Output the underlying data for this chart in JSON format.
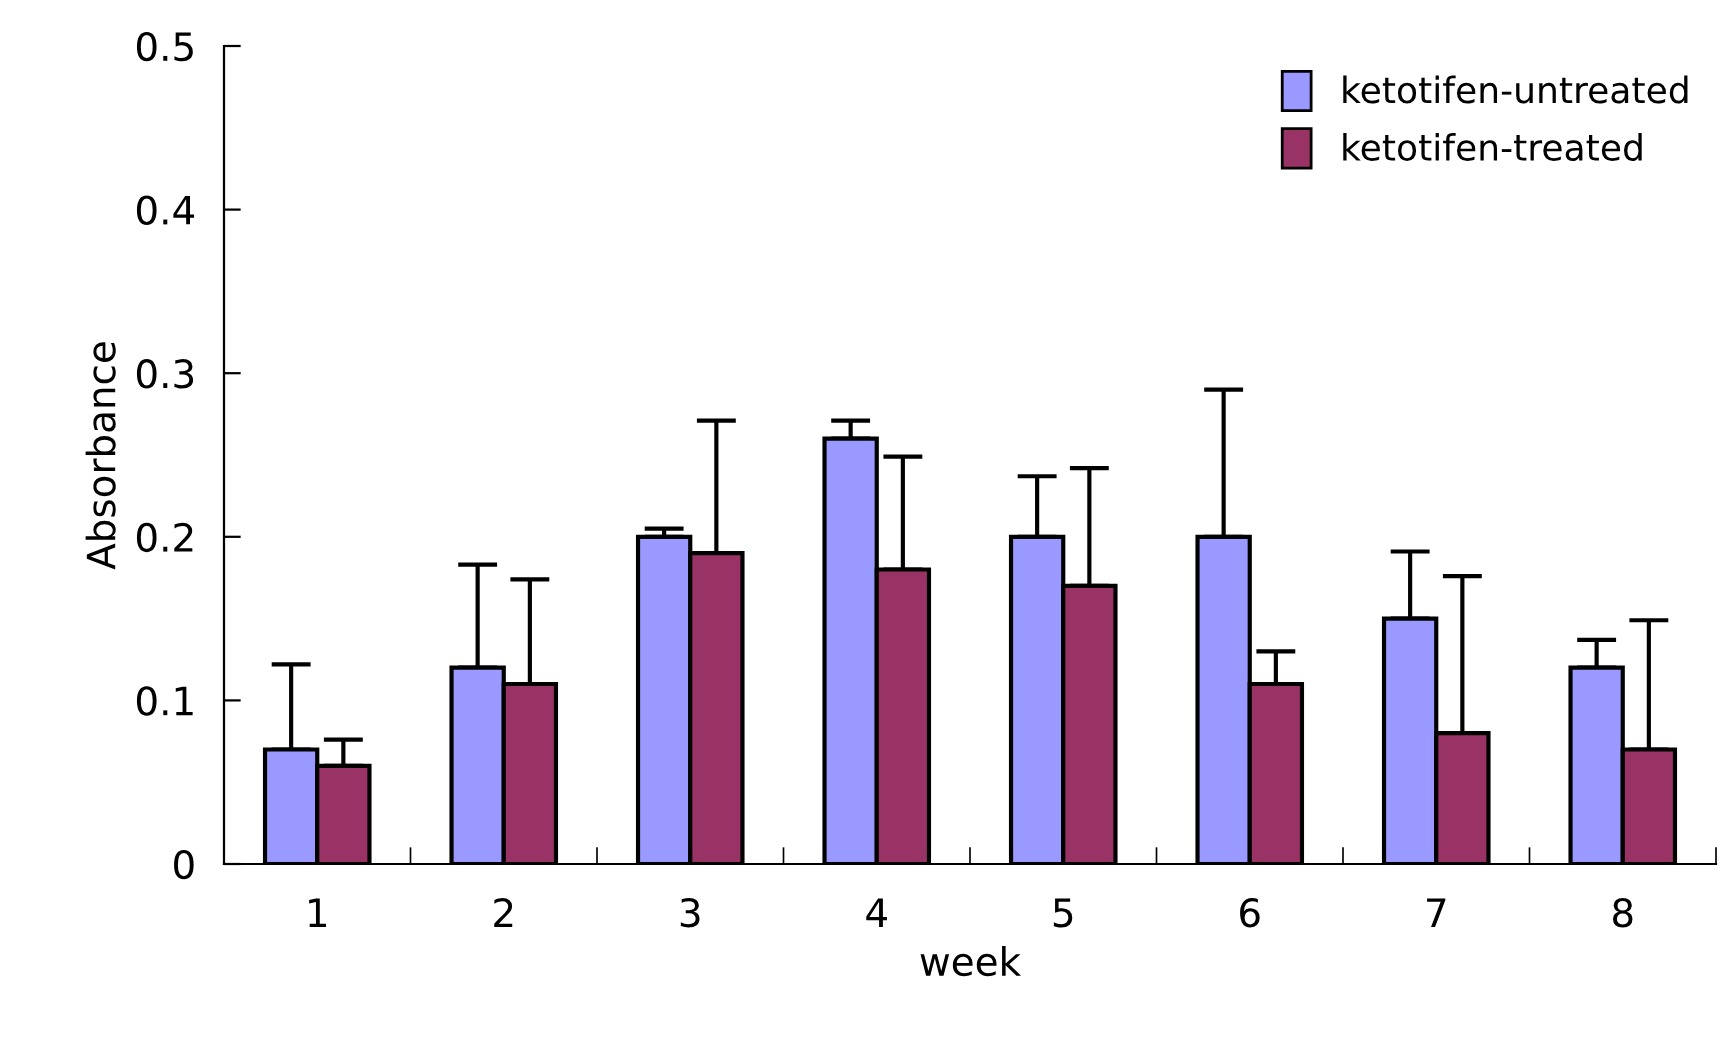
{
  "chart_data": {
    "type": "bar",
    "xlabel": "week",
    "ylabel": "Absorbance",
    "categories": [
      "1",
      "2",
      "3",
      "4",
      "5",
      "6",
      "7",
      "8"
    ],
    "series": [
      {
        "name": "ketotifen-untreated",
        "color": "#9999ff",
        "values": [
          0.07,
          0.12,
          0.2,
          0.26,
          0.2,
          0.2,
          0.15,
          0.12
        ],
        "errors": [
          [
            0.07,
            0.122
          ],
          [
            0.12,
            0.183
          ],
          [
            0.2,
            0.205
          ],
          [
            0.26,
            0.271
          ],
          [
            0.2,
            0.237
          ],
          [
            0.2,
            0.29
          ],
          [
            0.15,
            0.191
          ],
          [
            0.12,
            0.137
          ]
        ]
      },
      {
        "name": "ketotifen-treated",
        "color": "#993366",
        "values": [
          0.06,
          0.11,
          0.19,
          0.18,
          0.17,
          0.11,
          0.08,
          0.07
        ],
        "errors": [
          [
            0.06,
            0.076
          ],
          [
            0.11,
            0.174
          ],
          [
            0.19,
            0.271
          ],
          [
            0.18,
            0.249
          ],
          [
            0.17,
            0.242
          ],
          [
            0.11,
            0.13
          ],
          [
            0.08,
            0.176
          ],
          [
            0.07,
            0.149
          ]
        ]
      }
    ],
    "ylim": [
      0,
      0.5
    ],
    "yticks": [
      {
        "value": 0,
        "label": "0"
      },
      0.1,
      0.2,
      0.3,
      0.4,
      0.5
    ],
    "grid": false,
    "legend": "top right"
  }
}
